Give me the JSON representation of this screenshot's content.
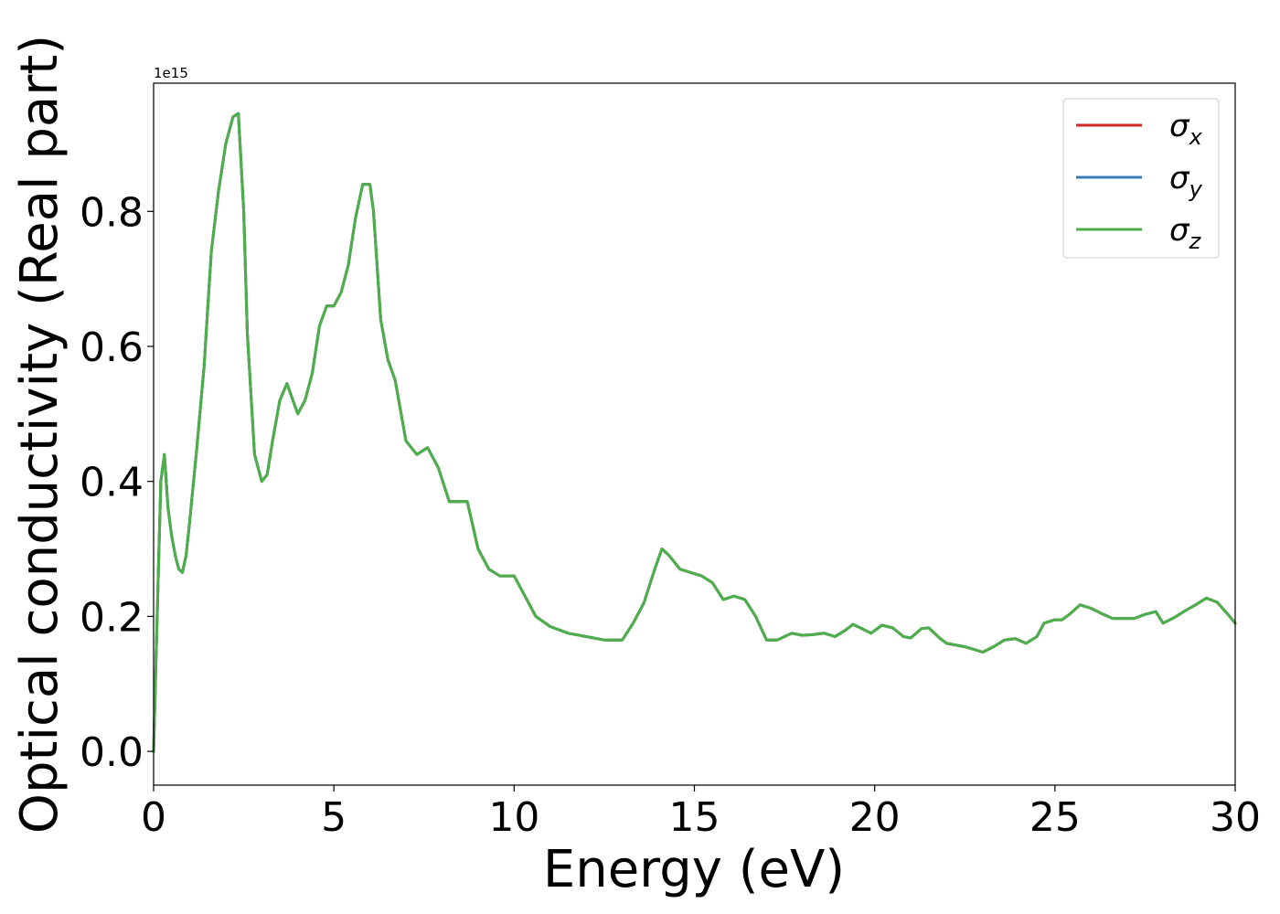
{
  "chart_data": {
    "type": "line",
    "xlabel": "Energy (eV)",
    "ylabel": "Optical conductivity (Real part)",
    "y_offset_label": "1e15",
    "xlim": [
      0,
      30
    ],
    "ylim": [
      -0.05,
      0.99
    ],
    "x_ticks": [
      0,
      5,
      10,
      15,
      20,
      25,
      30
    ],
    "x_tick_labels": [
      "0",
      "5",
      "10",
      "15",
      "20",
      "25",
      "30"
    ],
    "y_ticks": [
      0.0,
      0.2,
      0.4,
      0.6,
      0.8
    ],
    "y_tick_labels": [
      "0.0",
      "0.2",
      "0.4",
      "0.6",
      "0.8"
    ],
    "grid": false,
    "legend_position": "top-right",
    "x": [
      0,
      0.1,
      0.2,
      0.3,
      0.4,
      0.5,
      0.6,
      0.7,
      0.8,
      0.9,
      1.0,
      1.2,
      1.4,
      1.6,
      1.8,
      2.0,
      2.2,
      2.35,
      2.5,
      2.6,
      2.8,
      3.0,
      3.15,
      3.3,
      3.5,
      3.7,
      3.8,
      4.0,
      4.2,
      4.4,
      4.6,
      4.8,
      5.0,
      5.2,
      5.4,
      5.6,
      5.8,
      6.0,
      6.1,
      6.3,
      6.5,
      6.7,
      7.0,
      7.3,
      7.6,
      7.9,
      8.2,
      8.4,
      8.7,
      9.0,
      9.3,
      9.6,
      10.0,
      10.3,
      10.6,
      11.0,
      11.5,
      12.0,
      12.5,
      12.8,
      13.0,
      13.3,
      13.6,
      13.9,
      14.1,
      14.3,
      14.6,
      14.9,
      15.2,
      15.5,
      15.8,
      16.1,
      16.4,
      16.7,
      17.0,
      17.3,
      17.7,
      18.0,
      18.3,
      18.6,
      18.9,
      19.2,
      19.4,
      19.6,
      19.9,
      20.2,
      20.5,
      20.8,
      21.0,
      21.3,
      21.5,
      21.8,
      22.0,
      22.5,
      23.0,
      23.3,
      23.6,
      23.9,
      24.2,
      24.5,
      24.7,
      25.0,
      25.2,
      25.4,
      25.7,
      26.0,
      26.3,
      26.6,
      26.9,
      27.2,
      27.5,
      27.8,
      28.0,
      28.3,
      28.6,
      28.9,
      29.2,
      29.5,
      29.8,
      30.0
    ],
    "series": [
      {
        "name": "σx",
        "symbol": "σ",
        "sub": "x",
        "color": "#d62728",
        "values": [
          0.0,
          0.2,
          0.4,
          0.44,
          0.36,
          0.32,
          0.29,
          0.27,
          0.265,
          0.29,
          0.34,
          0.45,
          0.57,
          0.74,
          0.83,
          0.9,
          0.94,
          0.945,
          0.8,
          0.62,
          0.44,
          0.4,
          0.41,
          0.46,
          0.52,
          0.545,
          0.53,
          0.5,
          0.52,
          0.56,
          0.63,
          0.66,
          0.66,
          0.68,
          0.72,
          0.79,
          0.84,
          0.84,
          0.8,
          0.64,
          0.58,
          0.55,
          0.46,
          0.44,
          0.45,
          0.42,
          0.37,
          0.37,
          0.37,
          0.3,
          0.27,
          0.26,
          0.26,
          0.23,
          0.2,
          0.185,
          0.175,
          0.17,
          0.165,
          0.165,
          0.165,
          0.19,
          0.22,
          0.27,
          0.3,
          0.29,
          0.27,
          0.265,
          0.26,
          0.25,
          0.225,
          0.23,
          0.225,
          0.2,
          0.165,
          0.165,
          0.175,
          0.172,
          0.173,
          0.175,
          0.17,
          0.18,
          0.188,
          0.183,
          0.175,
          0.187,
          0.183,
          0.17,
          0.168,
          0.182,
          0.183,
          0.168,
          0.16,
          0.155,
          0.147,
          0.155,
          0.165,
          0.167,
          0.16,
          0.17,
          0.19,
          0.195,
          0.195,
          0.203,
          0.217,
          0.212,
          0.204,
          0.197,
          0.197,
          0.197,
          0.203,
          0.207,
          0.19,
          0.198,
          0.208,
          0.217,
          0.227,
          0.221,
          0.203,
          0.19
        ]
      },
      {
        "name": "σy",
        "symbol": "σ",
        "sub": "y",
        "color": "#377eb8",
        "values": [
          0.0,
          0.2,
          0.4,
          0.44,
          0.36,
          0.32,
          0.29,
          0.27,
          0.265,
          0.29,
          0.34,
          0.45,
          0.57,
          0.74,
          0.83,
          0.9,
          0.94,
          0.945,
          0.8,
          0.62,
          0.44,
          0.4,
          0.41,
          0.46,
          0.52,
          0.545,
          0.53,
          0.5,
          0.52,
          0.56,
          0.63,
          0.66,
          0.66,
          0.68,
          0.72,
          0.79,
          0.84,
          0.84,
          0.8,
          0.64,
          0.58,
          0.55,
          0.46,
          0.44,
          0.45,
          0.42,
          0.37,
          0.37,
          0.37,
          0.3,
          0.27,
          0.26,
          0.26,
          0.23,
          0.2,
          0.185,
          0.175,
          0.17,
          0.165,
          0.165,
          0.165,
          0.19,
          0.22,
          0.27,
          0.3,
          0.29,
          0.27,
          0.265,
          0.26,
          0.25,
          0.225,
          0.23,
          0.225,
          0.2,
          0.165,
          0.165,
          0.175,
          0.172,
          0.173,
          0.175,
          0.17,
          0.18,
          0.188,
          0.183,
          0.175,
          0.187,
          0.183,
          0.17,
          0.168,
          0.182,
          0.183,
          0.168,
          0.16,
          0.155,
          0.147,
          0.155,
          0.165,
          0.167,
          0.16,
          0.17,
          0.19,
          0.195,
          0.195,
          0.203,
          0.217,
          0.212,
          0.204,
          0.197,
          0.197,
          0.197,
          0.203,
          0.207,
          0.19,
          0.198,
          0.208,
          0.217,
          0.227,
          0.221,
          0.203,
          0.19
        ]
      },
      {
        "name": "σz",
        "symbol": "σ",
        "sub": "z",
        "color": "#4daf4a",
        "values": [
          0.0,
          0.2,
          0.4,
          0.44,
          0.36,
          0.32,
          0.29,
          0.27,
          0.265,
          0.29,
          0.34,
          0.45,
          0.57,
          0.74,
          0.83,
          0.9,
          0.94,
          0.945,
          0.8,
          0.62,
          0.44,
          0.4,
          0.41,
          0.46,
          0.52,
          0.545,
          0.53,
          0.5,
          0.52,
          0.56,
          0.63,
          0.66,
          0.66,
          0.68,
          0.72,
          0.79,
          0.84,
          0.84,
          0.8,
          0.64,
          0.58,
          0.55,
          0.46,
          0.44,
          0.45,
          0.42,
          0.37,
          0.37,
          0.37,
          0.3,
          0.27,
          0.26,
          0.26,
          0.23,
          0.2,
          0.185,
          0.175,
          0.17,
          0.165,
          0.165,
          0.165,
          0.19,
          0.22,
          0.27,
          0.3,
          0.29,
          0.27,
          0.265,
          0.26,
          0.25,
          0.225,
          0.23,
          0.225,
          0.2,
          0.165,
          0.165,
          0.175,
          0.172,
          0.173,
          0.175,
          0.17,
          0.18,
          0.188,
          0.183,
          0.175,
          0.187,
          0.183,
          0.17,
          0.168,
          0.182,
          0.183,
          0.168,
          0.16,
          0.155,
          0.147,
          0.155,
          0.165,
          0.167,
          0.16,
          0.17,
          0.19,
          0.195,
          0.195,
          0.203,
          0.217,
          0.212,
          0.204,
          0.197,
          0.197,
          0.197,
          0.203,
          0.207,
          0.19,
          0.198,
          0.208,
          0.217,
          0.227,
          0.221,
          0.203,
          0.19
        ]
      }
    ]
  }
}
